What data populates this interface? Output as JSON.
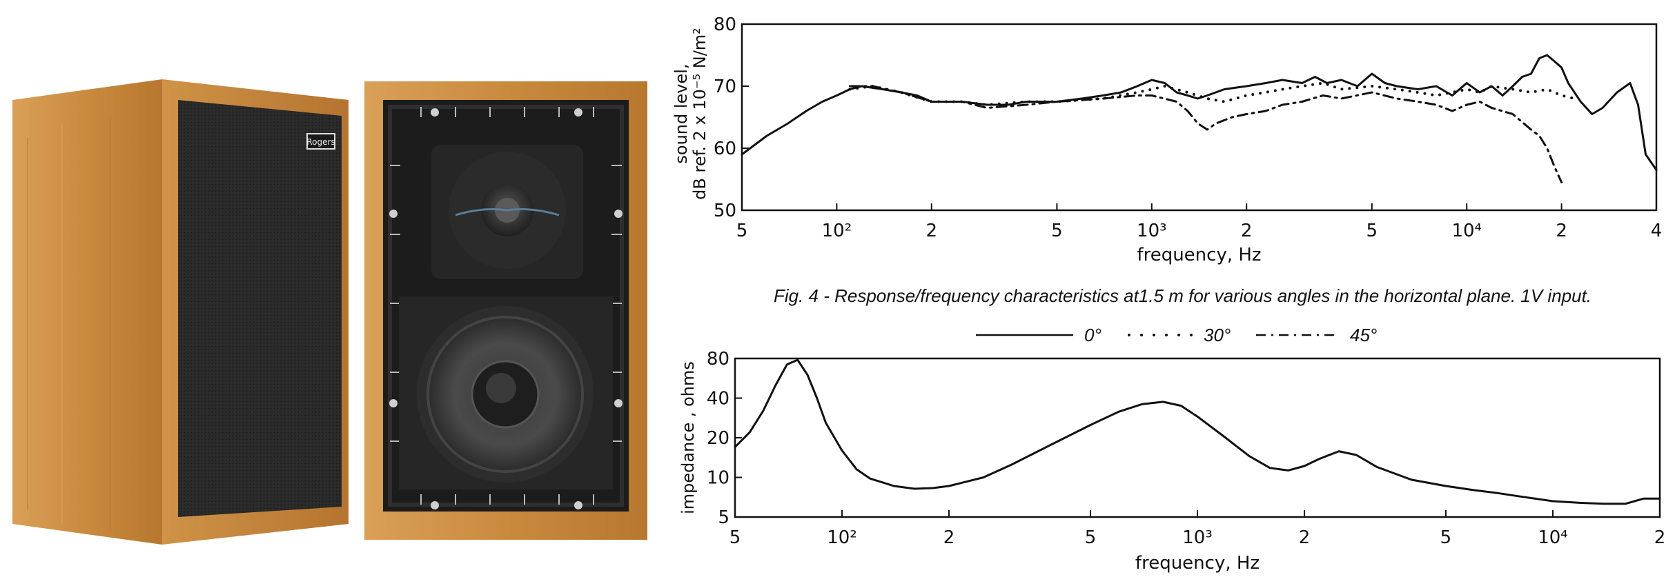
{
  "caption": "Fig.  4  -  Response/frequency characteristics at1.5 m for various angles in the horizontal plane. 1V input.",
  "legend": [
    {
      "label": "0°",
      "style": "solid"
    },
    {
      "label": "30°",
      "style": "dotted"
    },
    {
      "label": "45°",
      "style": "dash-dot"
    }
  ],
  "brand_badge": "Rogers",
  "colors": {
    "wood": "#c98a3e",
    "wood_dark": "#a9692a",
    "grille": "#2a2a2a",
    "baffle": "#1c1c1c",
    "ink": "#111111"
  },
  "chart_data": [
    {
      "type": "line",
      "title": "",
      "xlabel": "frequency, Hz",
      "ylabel": "sound level, dB ref. 2 x 10⁻⁵ N/m²",
      "ylabel_lines": [
        "sound level,",
        "dB ref. 2 x 10⁻⁵ N/m²"
      ],
      "x_scale": "log",
      "xlim": [
        50,
        40000
      ],
      "ylim": [
        50,
        80
      ],
      "x_ticks": [
        {
          "value": 50,
          "label": "5"
        },
        {
          "value": 100,
          "label": "10²"
        },
        {
          "value": 200,
          "label": "2"
        },
        {
          "value": 500,
          "label": "5"
        },
        {
          "value": 1000,
          "label": "10³"
        },
        {
          "value": 2000,
          "label": "2"
        },
        {
          "value": 5000,
          "label": "5"
        },
        {
          "value": 10000,
          "label": "10⁴"
        },
        {
          "value": 20000,
          "label": "2"
        },
        {
          "value": 40000,
          "label": "4"
        }
      ],
      "y_ticks": [
        50,
        60,
        70,
        80
      ],
      "grid": false,
      "series": [
        {
          "name": "0°",
          "style": "solid",
          "x": [
            50,
            60,
            70,
            80,
            90,
            100,
            110,
            120,
            140,
            160,
            180,
            200,
            250,
            300,
            350,
            400,
            500,
            600,
            700,
            800,
            900,
            1000,
            1100,
            1200,
            1300,
            1400,
            1500,
            1700,
            2000,
            2300,
            2600,
            3000,
            3300,
            3600,
            4000,
            4500,
            5000,
            5500,
            6000,
            7000,
            8000,
            9000,
            10000,
            11000,
            12000,
            13000,
            14000,
            15000,
            16000,
            17000,
            18000,
            19000,
            20000,
            21000,
            23000,
            25000,
            27000,
            30000,
            33000,
            35000,
            37000,
            40000
          ],
          "y": [
            59,
            62,
            64,
            66,
            67.5,
            68.5,
            69.5,
            70,
            69.5,
            69,
            68.5,
            67.5,
            67.5,
            67,
            67,
            67.5,
            67.5,
            68,
            68.5,
            69,
            70,
            71,
            70.5,
            69,
            68.5,
            68,
            68.5,
            69.5,
            70,
            70.5,
            71,
            70.5,
            71.5,
            70.5,
            71,
            70,
            72,
            70.5,
            70,
            69.5,
            70,
            68.5,
            70.5,
            69,
            70,
            68.5,
            70,
            71.5,
            72,
            74.5,
            75,
            74,
            73,
            70.5,
            67.5,
            65.5,
            66.5,
            69,
            70.5,
            67,
            59,
            56.5
          ]
        },
        {
          "name": "30°",
          "style": "dotted",
          "x": [
            110,
            130,
            160,
            200,
            250,
            300,
            400,
            500,
            700,
            900,
            1000,
            1100,
            1300,
            1500,
            1700,
            2000,
            2300,
            2600,
            3000,
            3500,
            4000,
            5000,
            6000,
            7000,
            8000,
            9000,
            10000,
            11000,
            12000,
            14000,
            16000,
            18000,
            20000,
            22000
          ],
          "y": [
            69.5,
            70,
            69,
            67.5,
            67.5,
            67,
            67.5,
            67.5,
            68,
            69,
            69.5,
            70,
            69,
            68,
            67.5,
            68.5,
            69,
            69.5,
            70,
            70.5,
            69.5,
            70,
            69.5,
            69,
            68.5,
            69,
            69.5,
            69,
            70,
            69.5,
            69,
            69.5,
            68.5,
            68
          ]
        },
        {
          "name": "45°",
          "style": "dash-dot",
          "x": [
            110,
            130,
            160,
            200,
            250,
            300,
            400,
            500,
            700,
            900,
            1000,
            1200,
            1300,
            1400,
            1500,
            1600,
            1800,
            2000,
            2300,
            2600,
            3000,
            3500,
            4000,
            5000,
            6000,
            7000,
            8000,
            9000,
            10000,
            11000,
            12000,
            14000,
            16000,
            17000,
            18000,
            19000,
            20000
          ],
          "y": [
            70,
            70,
            69,
            67.5,
            67.5,
            66.5,
            67,
            67.5,
            68,
            68.5,
            68.5,
            67.5,
            66,
            64,
            63,
            64,
            65,
            65.5,
            66,
            67,
            67.5,
            68.5,
            68,
            69,
            68,
            67.5,
            67,
            66,
            67,
            67.5,
            66.5,
            65.5,
            63,
            62,
            60,
            57,
            54.5
          ]
        }
      ]
    },
    {
      "type": "line",
      "title": "",
      "xlabel": "frequency, Hz",
      "ylabel": "impedance , ohms",
      "x_scale": "log",
      "y_scale": "log",
      "xlim": [
        50,
        20000
      ],
      "ylim": [
        5,
        80
      ],
      "x_ticks": [
        {
          "value": 50,
          "label": "5"
        },
        {
          "value": 100,
          "label": "10²"
        },
        {
          "value": 200,
          "label": "2"
        },
        {
          "value": 500,
          "label": "5"
        },
        {
          "value": 1000,
          "label": "10³"
        },
        {
          "value": 2000,
          "label": "2"
        },
        {
          "value": 5000,
          "label": "5"
        },
        {
          "value": 10000,
          "label": "10⁴"
        },
        {
          "value": 20000,
          "label": "2"
        }
      ],
      "y_ticks": [
        5,
        10,
        20,
        40,
        80
      ],
      "grid": false,
      "series": [
        {
          "style": "solid",
          "x": [
            50,
            55,
            60,
            65,
            70,
            75,
            80,
            85,
            90,
            100,
            110,
            120,
            140,
            160,
            180,
            200,
            250,
            300,
            400,
            500,
            600,
            700,
            800,
            900,
            1000,
            1200,
            1400,
            1600,
            1800,
            2000,
            2200,
            2500,
            2800,
            3200,
            4000,
            5000,
            6000,
            7000,
            8000,
            10000,
            12000,
            14000,
            16000,
            18000,
            20000
          ],
          "y": [
            17,
            22,
            32,
            50,
            72,
            78,
            60,
            40,
            26,
            16,
            11.5,
            9.8,
            8.6,
            8.2,
            8.3,
            8.6,
            10,
            12.5,
            18.5,
            25,
            31.5,
            36,
            37.5,
            35,
            29,
            20,
            14.5,
            11.8,
            11.3,
            12.2,
            13.8,
            15.8,
            14.8,
            12,
            9.6,
            8.6,
            8,
            7.6,
            7.2,
            6.6,
            6.4,
            6.3,
            6.3,
            6.9,
            6.9
          ]
        }
      ]
    }
  ]
}
